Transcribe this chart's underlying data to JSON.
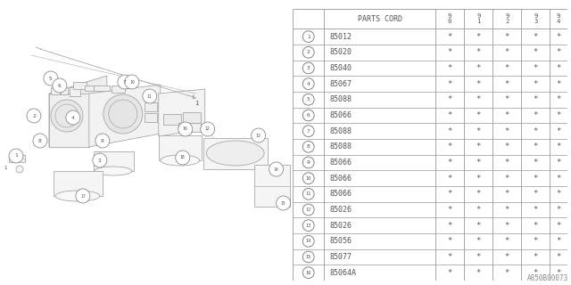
{
  "bg_color": "#ffffff",
  "diagram_ref": "A850B00073",
  "rows": [
    {
      "num": 1,
      "part": "85012",
      "vals": [
        "*",
        "*",
        "*",
        "*",
        "*"
      ]
    },
    {
      "num": 2,
      "part": "85020",
      "vals": [
        "*",
        "*",
        "*",
        "*",
        "*"
      ]
    },
    {
      "num": 3,
      "part": "85040",
      "vals": [
        "*",
        "*",
        "*",
        "*",
        "*"
      ]
    },
    {
      "num": 4,
      "part": "85067",
      "vals": [
        "*",
        "*",
        "*",
        "*",
        "*"
      ]
    },
    {
      "num": 5,
      "part": "85088",
      "vals": [
        "*",
        "*",
        "*",
        "*",
        "*"
      ]
    },
    {
      "num": 6,
      "part": "85066",
      "vals": [
        "*",
        "*",
        "*",
        "*",
        "*"
      ]
    },
    {
      "num": 7,
      "part": "85088",
      "vals": [
        "*",
        "*",
        "*",
        "*",
        "*"
      ]
    },
    {
      "num": 8,
      "part": "85088",
      "vals": [
        "*",
        "*",
        "*",
        "*",
        "*"
      ]
    },
    {
      "num": 9,
      "part": "85066",
      "vals": [
        "*",
        "*",
        "*",
        "*",
        "*"
      ]
    },
    {
      "num": 10,
      "part": "85066",
      "vals": [
        "*",
        "*",
        "*",
        "*",
        "*"
      ]
    },
    {
      "num": 11,
      "part": "85066",
      "vals": [
        "*",
        "*",
        "*",
        "*",
        "*"
      ]
    },
    {
      "num": 12,
      "part": "85026",
      "vals": [
        "*",
        "*",
        "*",
        "*",
        "*"
      ]
    },
    {
      "num": 13,
      "part": "85026",
      "vals": [
        "*",
        "*",
        "*",
        "*",
        "*"
      ]
    },
    {
      "num": 14,
      "part": "85056",
      "vals": [
        "*",
        "*",
        "*",
        "*",
        "*"
      ]
    },
    {
      "num": 15,
      "part": "85077",
      "vals": [
        "*",
        "*",
        "*",
        "*",
        "*"
      ]
    },
    {
      "num": 16,
      "part": "85064A",
      "vals": [
        "*",
        "*",
        "*",
        "*",
        "*"
      ]
    }
  ],
  "years": [
    "9\n0",
    "9\n1",
    "9\n2",
    "9\n3",
    "9\n4"
  ],
  "line_color": "#999999",
  "text_color": "#555555",
  "font_size_part": 6.0,
  "font_size_header": 6.0,
  "font_size_val": 6.5,
  "font_size_circle": 4.5,
  "font_size_ref": 5.5
}
